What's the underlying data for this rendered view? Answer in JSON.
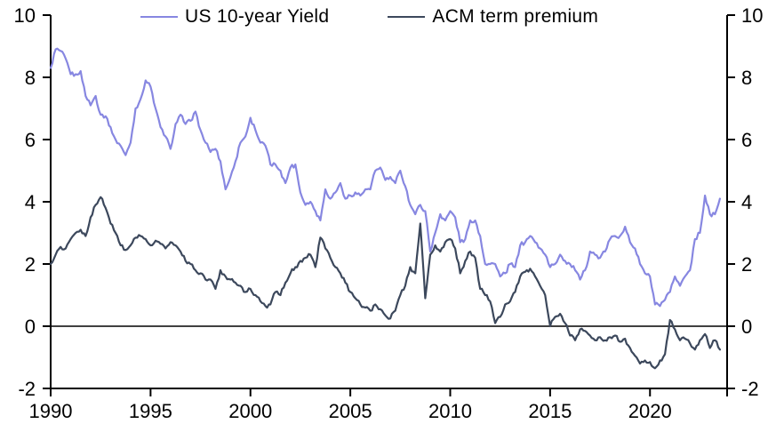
{
  "chart_data": {
    "type": "line",
    "title": "",
    "xlabel": "",
    "ylabel": "",
    "xlim": [
      1990,
      2023.86
    ],
    "ylim": [
      -2,
      10
    ],
    "x_ticks": [
      1990,
      1995,
      2000,
      2005,
      2010,
      2015,
      2020
    ],
    "y_ticks_left": [
      10,
      8,
      6,
      4,
      2,
      0,
      -2
    ],
    "y_ticks_right": [
      10,
      8,
      6,
      4,
      2,
      0,
      -2
    ],
    "grid": false,
    "zero_line": true,
    "legend_position": "top-center",
    "axis_color": "#000000",
    "background": "#ffffff",
    "x": [
      1990.0,
      1990.25,
      1990.5,
      1990.75,
      1991.0,
      1991.25,
      1991.5,
      1991.75,
      1992.0,
      1992.25,
      1992.5,
      1992.75,
      1993.0,
      1993.25,
      1993.5,
      1993.75,
      1994.0,
      1994.25,
      1994.5,
      1994.75,
      1995.0,
      1995.25,
      1995.5,
      1995.75,
      1996.0,
      1996.25,
      1996.5,
      1996.75,
      1997.0,
      1997.25,
      1997.5,
      1997.75,
      1998.0,
      1998.25,
      1998.5,
      1998.75,
      1999.0,
      1999.25,
      1999.5,
      1999.75,
      2000.0,
      2000.25,
      2000.5,
      2000.75,
      2001.0,
      2001.25,
      2001.5,
      2001.75,
      2002.0,
      2002.25,
      2002.5,
      2002.75,
      2003.0,
      2003.25,
      2003.5,
      2003.75,
      2004.0,
      2004.25,
      2004.5,
      2004.75,
      2005.0,
      2005.25,
      2005.5,
      2005.75,
      2006.0,
      2006.25,
      2006.5,
      2006.75,
      2007.0,
      2007.25,
      2007.5,
      2007.75,
      2008.0,
      2008.25,
      2008.5,
      2008.75,
      2009.0,
      2009.25,
      2009.5,
      2009.75,
      2010.0,
      2010.25,
      2010.5,
      2010.75,
      2011.0,
      2011.25,
      2011.5,
      2011.75,
      2012.0,
      2012.25,
      2012.5,
      2012.75,
      2013.0,
      2013.25,
      2013.5,
      2013.75,
      2014.0,
      2014.25,
      2014.5,
      2014.75,
      2015.0,
      2015.25,
      2015.5,
      2015.75,
      2016.0,
      2016.25,
      2016.5,
      2016.75,
      2017.0,
      2017.25,
      2017.5,
      2017.75,
      2018.0,
      2018.25,
      2018.5,
      2018.75,
      2019.0,
      2019.25,
      2019.5,
      2019.75,
      2020.0,
      2020.25,
      2020.5,
      2020.75,
      2021.0,
      2021.25,
      2021.5,
      2021.75,
      2022.0,
      2022.25,
      2022.5,
      2022.75,
      2023.0,
      2023.25,
      2023.5
    ],
    "series": [
      {
        "name": "US 10-year Yield",
        "color": "#8787e1",
        "values": [
          8.3,
          8.9,
          8.85,
          8.6,
          8.1,
          8.1,
          8.2,
          7.4,
          7.1,
          7.4,
          6.8,
          6.75,
          6.4,
          6.0,
          5.8,
          5.5,
          5.9,
          7.0,
          7.3,
          7.9,
          7.7,
          7.0,
          6.4,
          6.1,
          5.7,
          6.5,
          6.8,
          6.5,
          6.6,
          6.9,
          6.3,
          5.9,
          5.6,
          5.7,
          5.3,
          4.4,
          4.8,
          5.3,
          5.9,
          6.1,
          6.7,
          6.3,
          5.9,
          5.8,
          5.2,
          5.2,
          5.0,
          4.6,
          5.1,
          5.2,
          4.3,
          3.9,
          4.0,
          3.7,
          3.4,
          4.4,
          4.1,
          4.3,
          4.6,
          4.1,
          4.2,
          4.3,
          4.2,
          4.4,
          4.4,
          5.0,
          5.1,
          4.7,
          4.8,
          4.6,
          5.0,
          4.5,
          3.9,
          3.6,
          3.9,
          3.7,
          2.4,
          3.0,
          3.6,
          3.4,
          3.7,
          3.5,
          2.7,
          2.8,
          3.4,
          3.4,
          2.9,
          2.0,
          2.0,
          2.0,
          1.6,
          1.7,
          2.0,
          1.9,
          2.6,
          2.7,
          2.9,
          2.7,
          2.5,
          2.3,
          1.9,
          2.0,
          2.3,
          2.1,
          2.0,
          1.8,
          1.5,
          1.8,
          2.4,
          2.3,
          2.2,
          2.4,
          2.8,
          2.9,
          2.9,
          3.2,
          2.7,
          2.5,
          2.0,
          1.7,
          1.6,
          0.7,
          0.65,
          0.85,
          1.1,
          1.6,
          1.3,
          1.6,
          1.8,
          2.8,
          3.0,
          4.2,
          3.6,
          3.6,
          4.1
        ]
      },
      {
        "name": "ACM term premium",
        "color": "#3c485c",
        "values": [
          2.0,
          2.3,
          2.55,
          2.5,
          2.8,
          3.0,
          3.1,
          2.9,
          3.5,
          3.9,
          4.15,
          3.8,
          3.3,
          3.0,
          2.6,
          2.45,
          2.6,
          2.85,
          2.9,
          2.8,
          2.6,
          2.75,
          2.65,
          2.5,
          2.7,
          2.6,
          2.4,
          2.1,
          2.0,
          1.8,
          1.7,
          1.5,
          1.5,
          1.2,
          1.8,
          1.6,
          1.5,
          1.4,
          1.3,
          1.1,
          1.2,
          1.0,
          0.8,
          0.65,
          0.7,
          1.1,
          1.0,
          1.4,
          1.7,
          1.9,
          2.1,
          2.2,
          2.3,
          1.9,
          2.85,
          2.5,
          2.2,
          1.9,
          1.7,
          1.4,
          1.1,
          0.9,
          0.7,
          0.6,
          0.5,
          0.7,
          0.55,
          0.35,
          0.25,
          0.5,
          1.0,
          1.3,
          1.9,
          1.7,
          3.3,
          0.9,
          2.3,
          2.6,
          2.4,
          2.7,
          2.8,
          2.5,
          1.7,
          2.1,
          2.4,
          2.2,
          1.2,
          1.0,
          0.8,
          0.1,
          0.3,
          0.7,
          0.8,
          1.1,
          1.6,
          1.75,
          1.85,
          1.6,
          1.3,
          1.0,
          0.0,
          0.3,
          0.4,
          0.1,
          -0.3,
          -0.45,
          -0.1,
          -0.15,
          -0.3,
          -0.45,
          -0.35,
          -0.45,
          -0.35,
          -0.3,
          -0.5,
          -0.4,
          -0.7,
          -0.95,
          -1.2,
          -1.1,
          -1.15,
          -1.35,
          -1.1,
          -0.9,
          0.2,
          -0.1,
          -0.45,
          -0.4,
          -0.55,
          -0.75,
          -0.45,
          -0.25,
          -0.7,
          -0.45,
          -0.75
        ]
      }
    ]
  }
}
